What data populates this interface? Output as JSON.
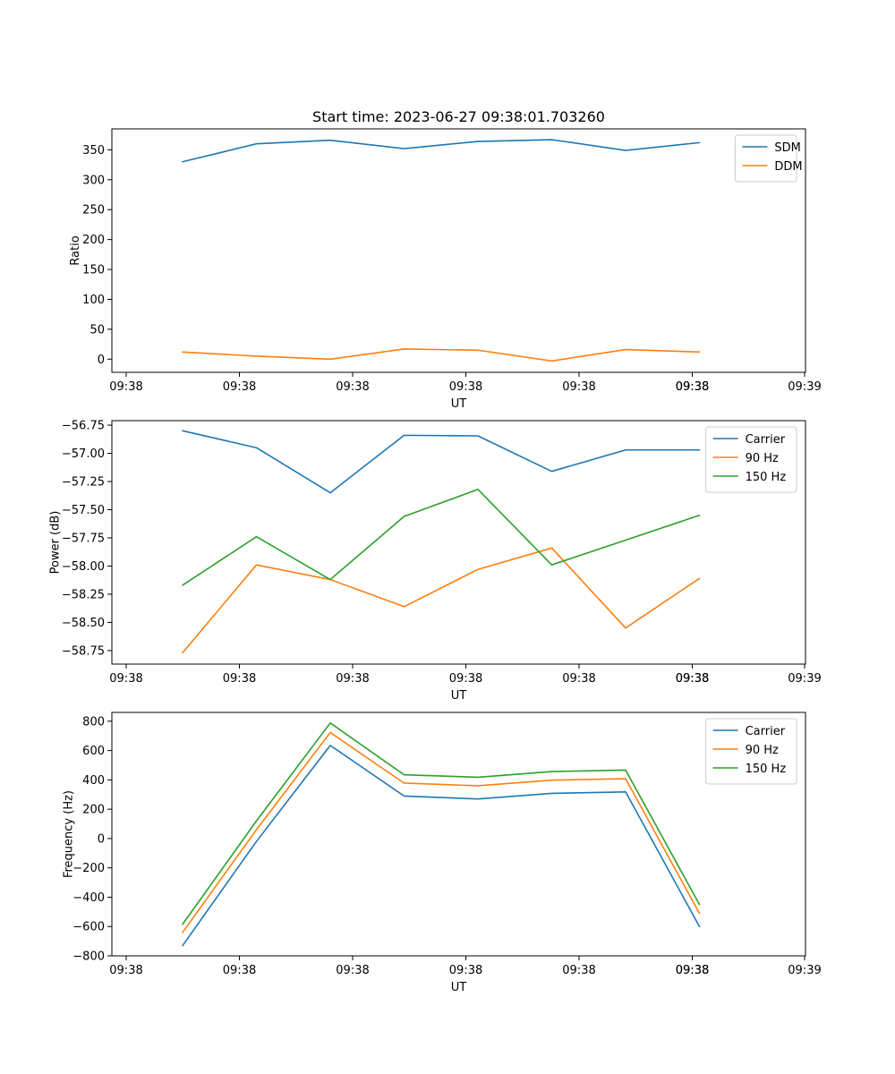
{
  "figure": {
    "title": "Start time: 2023-06-27 09:38:01.703260"
  },
  "colors": {
    "blue": "#1f77b4",
    "orange": "#ff7f0e",
    "green": "#2ca02c"
  },
  "chart_data": [
    {
      "type": "line",
      "title": "Start time: 2023-06-27 09:38:01.703260",
      "xlabel": "UT",
      "ylabel": "Ratio",
      "x_tick_labels": [
        "09:38",
        "09:38",
        "09:38",
        "09:38",
        "09:38",
        "09:38",
        "09:38",
        "09:39"
      ],
      "y_ticks": [
        0,
        50,
        100,
        150,
        200,
        250,
        300,
        350
      ],
      "y_tick_labels": [
        "0",
        "50",
        "100",
        "150",
        "200",
        "250",
        "300",
        "350"
      ],
      "ylim": [
        -22,
        385
      ],
      "legend": "top-right",
      "series": [
        {
          "name": "SDM",
          "color": "#1f77b4",
          "values": [
            330,
            360,
            366,
            352,
            364,
            367,
            349,
            362
          ]
        },
        {
          "name": "DDM",
          "color": "#ff7f0e",
          "values": [
            12,
            5,
            0,
            17,
            15,
            -3,
            16,
            12
          ]
        }
      ]
    },
    {
      "type": "line",
      "title": "",
      "xlabel": "UT",
      "ylabel": "Power (dB)",
      "x_tick_labels": [
        "09:38",
        "09:38",
        "09:38",
        "09:38",
        "09:38",
        "09:38",
        "09:38",
        "09:39"
      ],
      "y_ticks": [
        -58.75,
        -58.5,
        -58.25,
        -58.0,
        -57.75,
        -57.5,
        -57.25,
        -57.0,
        -56.75
      ],
      "y_tick_labels": [
        "−58.75",
        "−58.50",
        "−58.25",
        "−58.00",
        "−57.75",
        "−57.50",
        "−57.25",
        "−57.00",
        "−56.75"
      ],
      "ylim": [
        -58.87,
        -56.71
      ],
      "legend": "top-right",
      "series": [
        {
          "name": "Carrier",
          "color": "#1f77b4",
          "values": [
            -56.8,
            -56.95,
            -57.35,
            -56.84,
            -56.845,
            -57.16,
            -56.97,
            -56.97
          ]
        },
        {
          "name": "90 Hz",
          "color": "#ff7f0e",
          "values": [
            -58.77,
            -57.99,
            -58.12,
            -58.36,
            -58.03,
            -57.84,
            -58.55,
            -58.11
          ]
        },
        {
          "name": "150 Hz",
          "color": "#2ca02c",
          "values": [
            -58.17,
            -57.74,
            -58.12,
            -57.56,
            -57.32,
            -57.99,
            -57.77,
            -57.55
          ]
        }
      ]
    },
    {
      "type": "line",
      "title": "",
      "xlabel": "UT",
      "ylabel": "Frequency (Hz)",
      "x_tick_labels": [
        "09:38",
        "09:38",
        "09:38",
        "09:38",
        "09:38",
        "09:38",
        "09:38",
        "09:39"
      ],
      "y_ticks": [
        -800,
        -600,
        -400,
        -200,
        0,
        200,
        400,
        600,
        800
      ],
      "y_tick_labels": [
        "−800",
        "−600",
        "−400",
        "−200",
        "0",
        "200",
        "400",
        "600",
        "800"
      ],
      "ylim": [
        -800,
        860
      ],
      "legend": "top-right",
      "series": [
        {
          "name": "Carrier",
          "color": "#1f77b4",
          "values": [
            -730,
            -20,
            635,
            290,
            270,
            308,
            318,
            -600
          ]
        },
        {
          "name": "90 Hz",
          "color": "#ff7f0e",
          "values": [
            -640,
            60,
            723,
            378,
            360,
            398,
            408,
            -510
          ]
        },
        {
          "name": "150 Hz",
          "color": "#2ca02c",
          "values": [
            -585,
            120,
            788,
            435,
            418,
            457,
            467,
            -450
          ]
        }
      ]
    }
  ]
}
